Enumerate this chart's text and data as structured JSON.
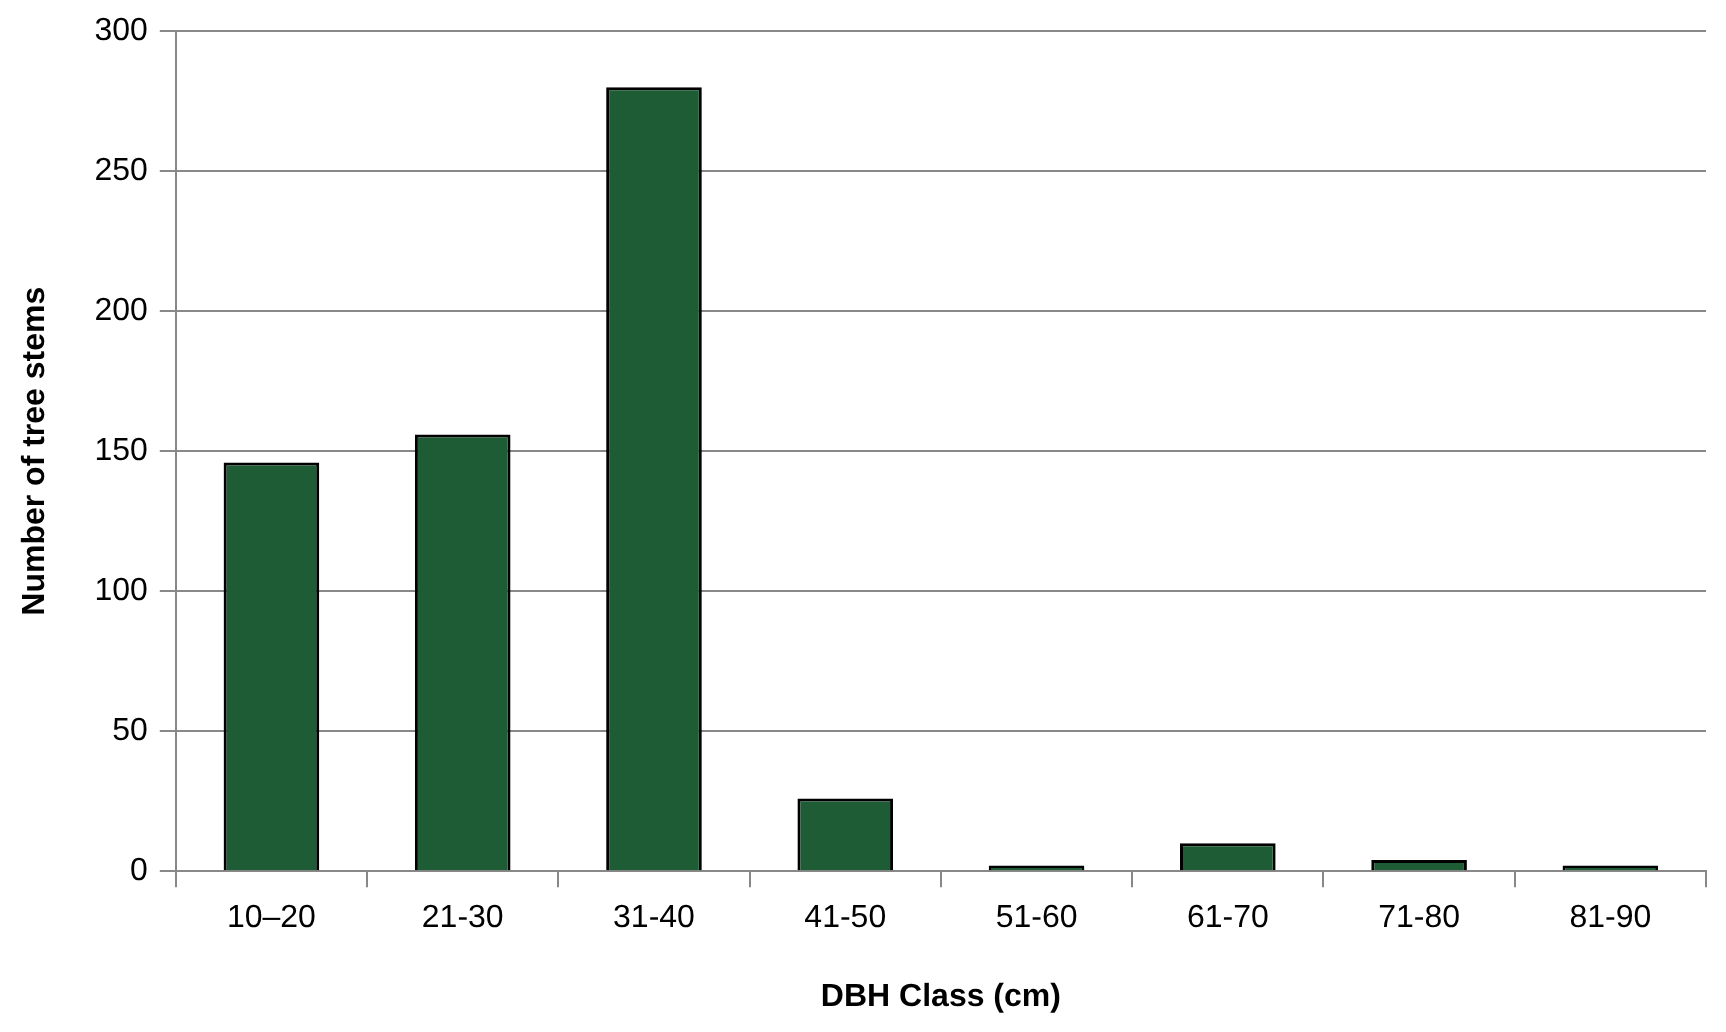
{
  "chart_data": {
    "type": "bar",
    "xlabel": "DBH Class (cm)",
    "ylabel": "Number of tree stems",
    "categories": [
      "10–20",
      "21-30",
      "31-40",
      "41-50",
      "51-60",
      "61-70",
      "71-80",
      "81-90"
    ],
    "values": [
      146,
      156,
      280,
      26,
      2,
      10,
      4,
      2
    ],
    "color": "#1e5c36",
    "ylim": [
      0,
      300
    ],
    "yticks": [
      0,
      50,
      100,
      150,
      200,
      250,
      300
    ],
    "grid": "y",
    "legend": false
  }
}
